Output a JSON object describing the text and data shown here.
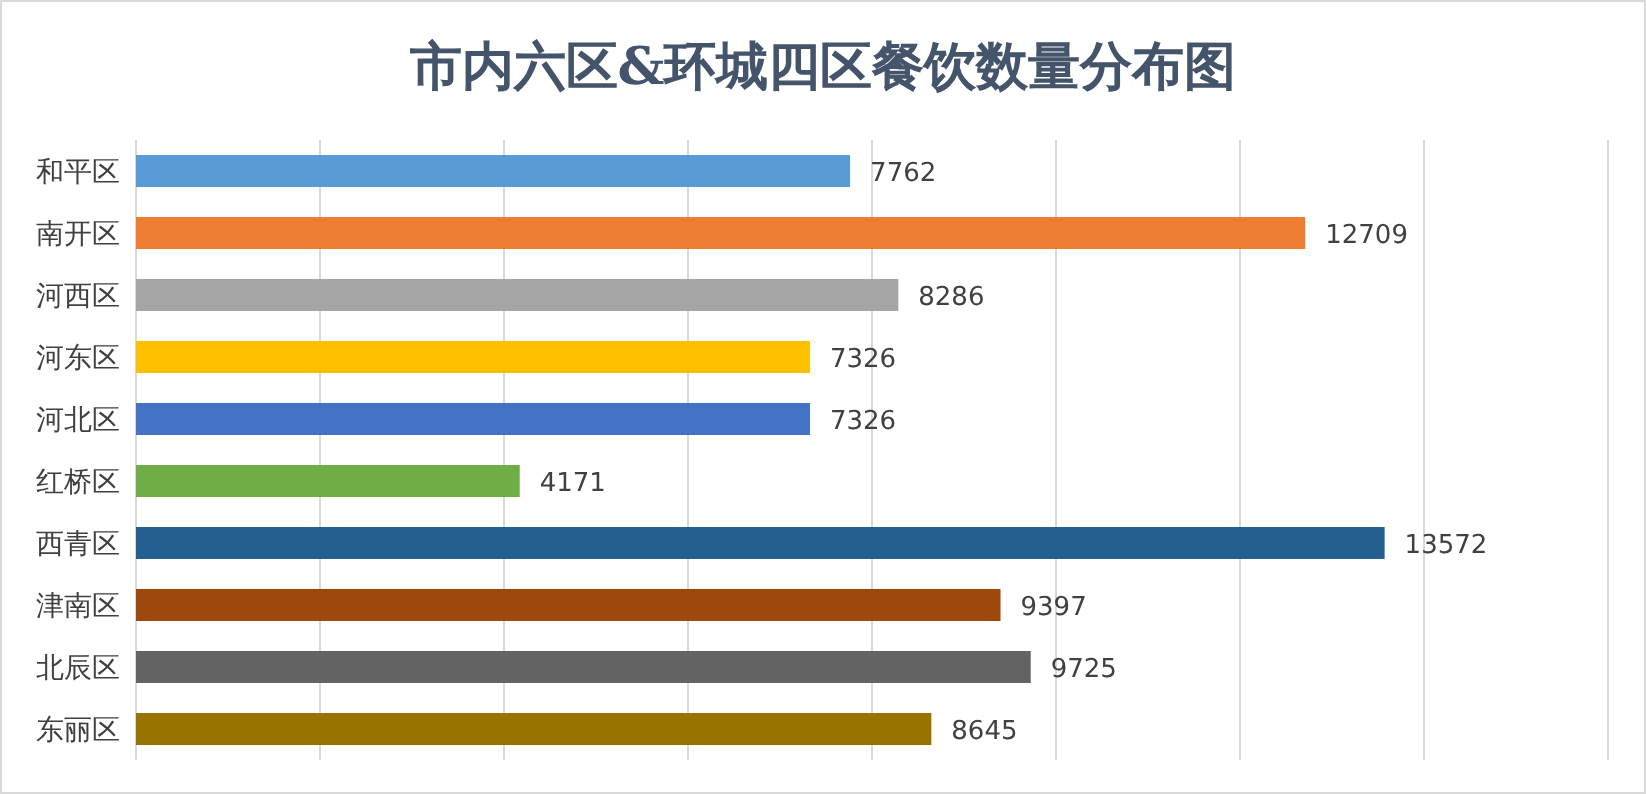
{
  "chart_data": {
    "type": "bar",
    "orientation": "horizontal",
    "title": "市内六区&环城四区餐饮数量分布图",
    "categories": [
      "和平区",
      "南开区",
      "河西区",
      "河东区",
      "河北区",
      "红桥区",
      "西青区",
      "津南区",
      "北辰区",
      "东丽区"
    ],
    "values": [
      7762,
      12709,
      8286,
      7326,
      7326,
      4171,
      13572,
      9397,
      9725,
      8645
    ],
    "colors": [
      "#5b9bd5",
      "#ed7d31",
      "#a5a5a5",
      "#ffc000",
      "#4472c4",
      "#70ad47",
      "#255e91",
      "#9e480e",
      "#636363",
      "#997300"
    ],
    "xlim": [
      0,
      16000
    ],
    "xticks": [
      {
        "value": 0,
        "label": null
      },
      {
        "value": 2000,
        "label": null
      },
      {
        "value": 4000,
        "label": null
      },
      {
        "value": 6000,
        "label": null
      },
      {
        "value": 8000,
        "label": null
      },
      {
        "value": 10000,
        "label": null
      },
      {
        "value": 12000,
        "label": null
      },
      {
        "value": 14000,
        "label": null
      },
      {
        "value": 16000,
        "label": null
      }
    ],
    "grid": "x",
    "tick_labels": "y",
    "data_labels": true
  }
}
